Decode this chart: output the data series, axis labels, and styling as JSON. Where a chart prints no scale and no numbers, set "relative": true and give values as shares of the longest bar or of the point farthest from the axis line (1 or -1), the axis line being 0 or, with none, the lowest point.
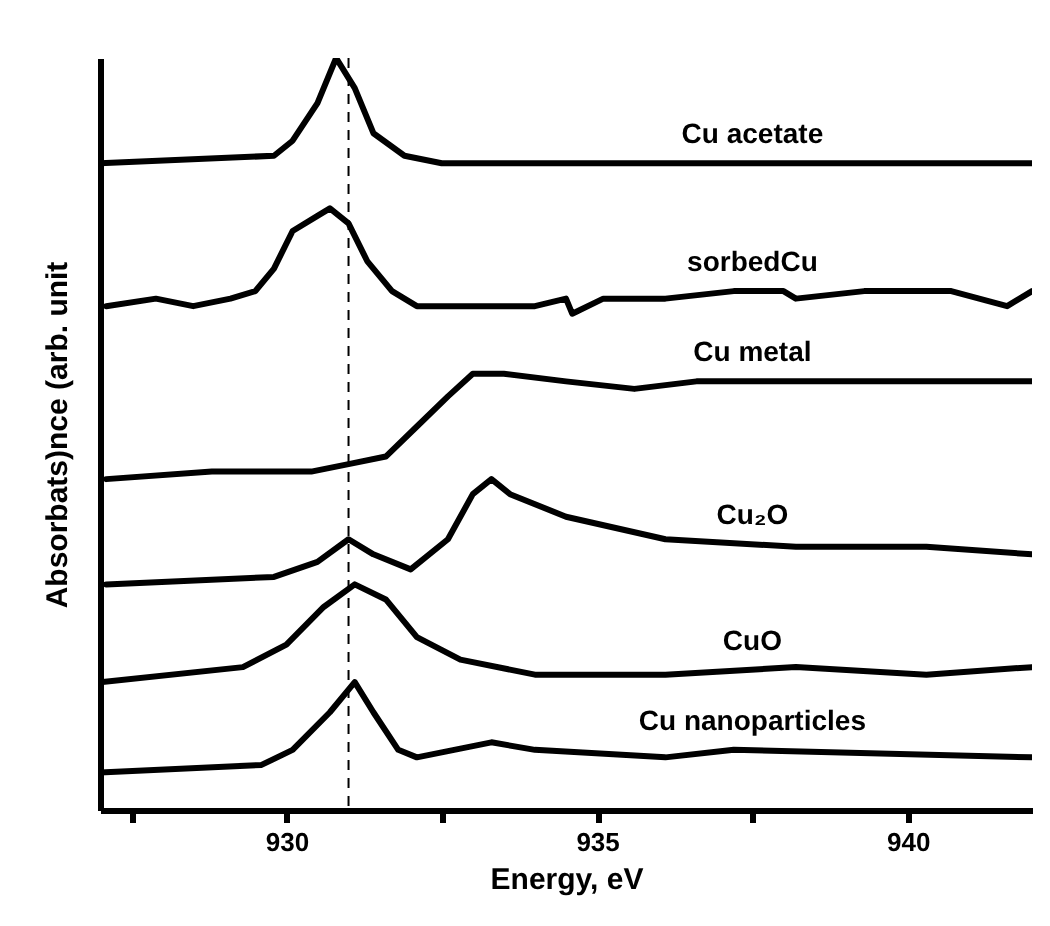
{
  "chart_data": {
    "type": "line",
    "relative": true,
    "xlabel": "Energy, eV",
    "ylabel": "Absorbats)nce (arb. unit",
    "xlim": [
      927,
      942
    ],
    "xticks": [
      {
        "value": 927.5,
        "label": null
      },
      930,
      {
        "value": 932.5,
        "label": null
      },
      935,
      {
        "value": 937.5,
        "label": null
      },
      940
    ],
    "legend": false,
    "grid": false,
    "marker": "none",
    "line_style": "solid",
    "ref_lines": [
      {
        "axis": "x",
        "value": 931,
        "color": "#000000",
        "line_style": "dashed"
      }
    ],
    "series": [
      {
        "name": "Cu acetate",
        "color": "#000000",
        "x": [
          927.0,
          929.8,
          930.1,
          930.5,
          930.8,
          931.1,
          931.4,
          931.9,
          932.5,
          935.0,
          938.0,
          942.0
        ],
        "values": [
          0.86,
          0.87,
          0.89,
          0.94,
          1.0,
          0.96,
          0.9,
          0.87,
          0.86,
          0.86,
          0.86,
          0.86
        ]
      },
      {
        "name": "sorbedCu",
        "color": "#000000",
        "x": [
          927.1,
          927.9,
          928.5,
          929.1,
          929.5,
          929.8,
          930.1,
          930.5,
          930.7,
          931.0,
          931.3,
          931.7,
          932.1,
          932.6,
          933.0,
          934.0,
          934.5,
          934.6,
          935.1,
          936.1,
          937.2,
          938.0,
          938.2,
          939.3,
          939.9,
          940.7,
          941.6,
          942.0
        ],
        "values": [
          0.67,
          0.68,
          0.67,
          0.68,
          0.69,
          0.72,
          0.77,
          0.79,
          0.8,
          0.78,
          0.73,
          0.69,
          0.67,
          0.67,
          0.67,
          0.67,
          0.68,
          0.66,
          0.68,
          0.68,
          0.69,
          0.69,
          0.68,
          0.69,
          0.69,
          0.69,
          0.67,
          0.69
        ]
      },
      {
        "name": "Cu metal",
        "color": "#000000",
        "x": [
          927.1,
          928.8,
          930.4,
          931.0,
          931.6,
          932.1,
          932.6,
          933.0,
          933.5,
          934.5,
          935.6,
          936.6,
          938.2,
          939.8,
          942.0
        ],
        "values": [
          0.44,
          0.45,
          0.45,
          0.46,
          0.47,
          0.51,
          0.55,
          0.58,
          0.58,
          0.57,
          0.56,
          0.57,
          0.57,
          0.57,
          0.57
        ]
      },
      {
        "name": "Cu₂O",
        "color": "#000000",
        "x": [
          927.1,
          929.8,
          930.5,
          931.0,
          931.4,
          932.0,
          932.6,
          933.0,
          933.3,
          933.6,
          934.5,
          936.1,
          938.2,
          940.3,
          942.0
        ],
        "values": [
          0.3,
          0.31,
          0.33,
          0.36,
          0.34,
          0.32,
          0.36,
          0.42,
          0.44,
          0.42,
          0.39,
          0.36,
          0.35,
          0.35,
          0.34
        ]
      },
      {
        "name": "CuO",
        "color": "#000000",
        "x": [
          927.0,
          929.3,
          930.0,
          930.6,
          931.1,
          931.6,
          932.1,
          932.8,
          934.0,
          936.1,
          938.2,
          940.3,
          942.0
        ],
        "values": [
          0.17,
          0.19,
          0.22,
          0.27,
          0.3,
          0.28,
          0.23,
          0.2,
          0.18,
          0.18,
          0.19,
          0.18,
          0.19
        ]
      },
      {
        "name": "Cu nanoparticles",
        "color": "#000000",
        "x": [
          927.0,
          929.6,
          930.1,
          930.7,
          931.1,
          931.4,
          931.8,
          932.1,
          932.7,
          933.3,
          934.0,
          936.1,
          937.2,
          942.0
        ],
        "values": [
          0.05,
          0.06,
          0.08,
          0.13,
          0.17,
          0.13,
          0.08,
          0.07,
          0.08,
          0.09,
          0.08,
          0.07,
          0.08,
          0.07
        ]
      }
    ]
  }
}
